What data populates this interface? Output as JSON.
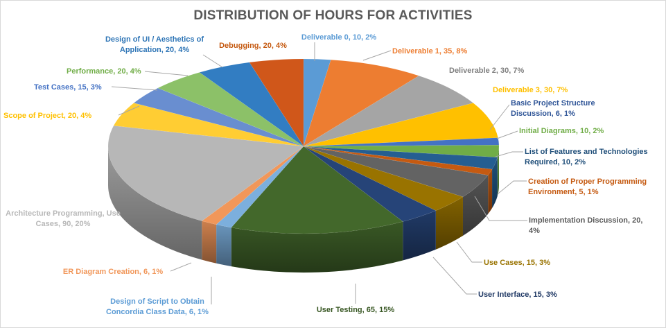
{
  "chart_data": {
    "type": "pie",
    "title": "DISTRIBUTION OF HOURS FOR ACTIVITIES",
    "legend": "none",
    "slices": [
      {
        "name": "Deliverable 0",
        "value": 10,
        "percent": "2%",
        "color": "#5b9bd5",
        "label_lines": [
          "Deliverable 0, 10, 2%"
        ]
      },
      {
        "name": "Deliverable 1",
        "value": 35,
        "percent": "8%",
        "color": "#ed7d31",
        "label_lines": [
          "Deliverable 1, 35, 8%"
        ]
      },
      {
        "name": "Deliverable 2",
        "value": 30,
        "percent": "7%",
        "color": "#a5a5a5",
        "label_lines": [
          "Deliverable 2, 30, 7%"
        ]
      },
      {
        "name": "Deliverable 3",
        "value": 30,
        "percent": "7%",
        "color": "#ffc000",
        "label_lines": [
          "Deliverable 3, 30, 7%"
        ]
      },
      {
        "name": "Basic Project Structure Discussion",
        "value": 6,
        "percent": "1%",
        "color": "#4472c4",
        "label_lines": [
          "Basic Project Structure",
          "Discussion, 6, 1%"
        ]
      },
      {
        "name": "Initial Diagrams",
        "value": 10,
        "percent": "2%",
        "color": "#70ad47",
        "label_lines": [
          "Initial Diagrams, 10, 2%"
        ]
      },
      {
        "name": "List of Features and Technologies Required",
        "value": 10,
        "percent": "2%",
        "color": "#255e91",
        "label_lines": [
          "List of Features and Technologies",
          "Required, 10, 2%"
        ]
      },
      {
        "name": "Creation of Proper Programming Environment",
        "value": 5,
        "percent": "1%",
        "color": "#c55a11",
        "label_lines": [
          "Creation of Proper Programming",
          "Environment, 5, 1%"
        ]
      },
      {
        "name": "Implementation Discussion",
        "value": 20,
        "percent": "4%",
        "color": "#636363",
        "label_lines": [
          "Implementation Discussion, 20,",
          "4%"
        ]
      },
      {
        "name": "Use Cases",
        "value": 15,
        "percent": "3%",
        "color": "#997300",
        "label_lines": [
          "Use Cases, 15, 3%"
        ]
      },
      {
        "name": "User Interface",
        "value": 15,
        "percent": "3%",
        "color": "#264478",
        "label_lines": [
          "User Interface, 15, 3%"
        ]
      },
      {
        "name": "User Testing",
        "value": 65,
        "percent": "15%",
        "color": "#43682b",
        "label_lines": [
          "User Testing, 65, 15%"
        ]
      },
      {
        "name": "Design of Script to Obtain Concordia Class Data",
        "value": 6,
        "percent": "1%",
        "color": "#7cafdd",
        "label_lines": [
          "Design of Script to Obtain",
          "Concordia Class Data, 6, 1%"
        ]
      },
      {
        "name": "ER Diagram Creation",
        "value": 6,
        "percent": "1%",
        "color": "#f1975a",
        "label_lines": [
          "ER Diagram  Creation, 6, 1%"
        ]
      },
      {
        "name": "Architecture Programming, Use Cases",
        "value": 90,
        "percent": "20%",
        "color": "#b7b7b7",
        "label_lines": [
          "Architecture Programming, Use",
          "Cases, 90, 20%"
        ]
      },
      {
        "name": "Scope of Project",
        "value": 20,
        "percent": "4%",
        "color": "#ffcd33",
        "label_lines": [
          "Scope of Project, 20, 4%"
        ]
      },
      {
        "name": "Test Cases",
        "value": 15,
        "percent": "3%",
        "color": "#698ed0",
        "label_lines": [
          "Test Cases, 15, 3%"
        ]
      },
      {
        "name": "Performance",
        "value": 20,
        "percent": "4%",
        "color": "#8cc168",
        "label_lines": [
          "Performance, 20, 4%"
        ]
      },
      {
        "name": "Design of UI / Aesthetics of Application",
        "value": 20,
        "percent": "4%",
        "color": "#327dc2",
        "label_lines": [
          "Design of UI / Aesthetics of",
          "Application, 20, 4%"
        ]
      },
      {
        "name": "Debugging",
        "value": 20,
        "percent": "4%",
        "color": "#d0571a",
        "label_lines": [
          "Debugging, 20, 4%"
        ]
      }
    ]
  }
}
